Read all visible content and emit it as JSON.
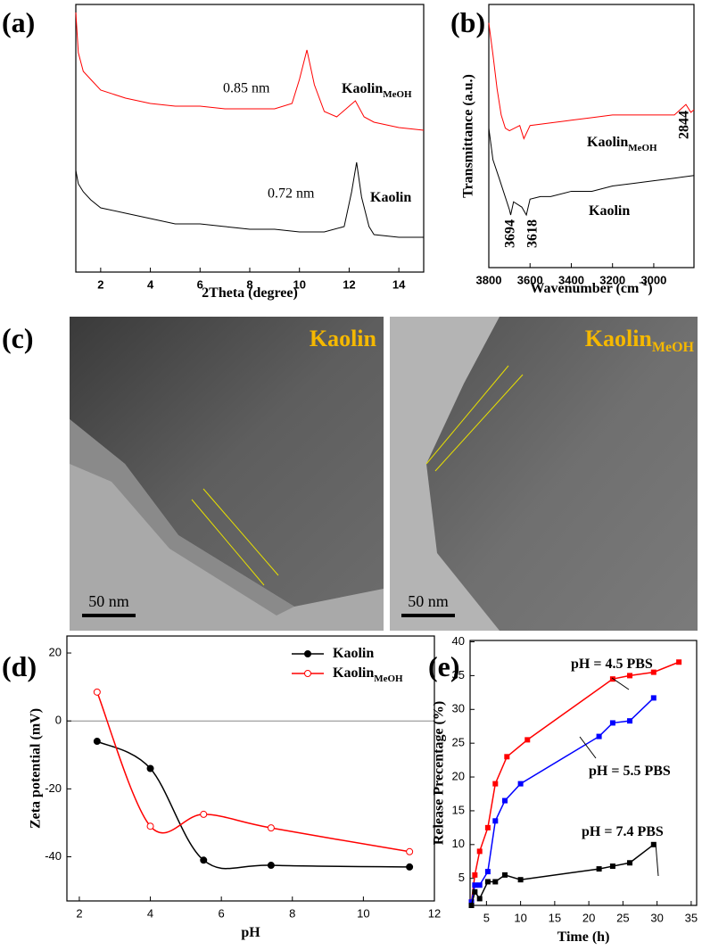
{
  "chart_data": [
    {
      "type": "line",
      "panel_label": "(a)",
      "xlabel": "2Theta (degree)",
      "xlim": [
        1,
        15
      ],
      "xticks": [
        2,
        4,
        6,
        8,
        10,
        12,
        14
      ],
      "ylim": [
        0,
        100
      ],
      "annotations": [
        "0.85 nm",
        "0.72 nm"
      ],
      "series": [
        {
          "name": "Kaolin",
          "name_sub": "MeOH",
          "color": "#ff0000",
          "x": [
            1,
            1.1,
            1.3,
            1.6,
            2,
            3,
            4,
            5,
            6,
            7,
            8,
            9,
            9.7,
            10,
            10.3,
            10.6,
            11,
            11.5,
            12,
            12.25,
            12.6,
            13,
            14,
            15
          ],
          "values": [
            97,
            82,
            75,
            72,
            68,
            65,
            63,
            62,
            62,
            61,
            61,
            61,
            63,
            72,
            83,
            70,
            60,
            58,
            62,
            64,
            58,
            56,
            54,
            53
          ]
        },
        {
          "name": "Kaolin",
          "color": "#000000",
          "x": [
            1,
            1.1,
            1.3,
            1.6,
            2,
            3,
            4,
            5,
            6,
            7,
            8,
            9,
            10,
            11,
            11.8,
            12.1,
            12.3,
            12.5,
            12.8,
            13,
            14,
            15
          ],
          "values": [
            38,
            33,
            30,
            27,
            24,
            22,
            20,
            18,
            18,
            17,
            16,
            16,
            15,
            15,
            17,
            30,
            41,
            28,
            17,
            14,
            13,
            13
          ]
        }
      ]
    },
    {
      "type": "line",
      "panel_label": "(b)",
      "ylabel": "Transmittance (a.u.)",
      "xlabel": "Wavenumber (cm",
      "xlabel_sup": "-1",
      "xlabel_end": ")",
      "xlim": [
        3800,
        2805
      ],
      "xticks": [
        3800,
        3600,
        3400,
        3200,
        3000
      ],
      "ylim": [
        0,
        100
      ],
      "annotations": [
        "2844",
        "3694",
        "3618"
      ],
      "series": [
        {
          "name": "Kaolin",
          "name_sub": "MeOH",
          "color": "#ff0000",
          "x": [
            3800,
            3780,
            3760,
            3740,
            3720,
            3700,
            3650,
            3630,
            3600,
            3500,
            3400,
            3300,
            3200,
            3100,
            3000,
            2900,
            2844,
            2820,
            2805
          ],
          "values": [
            93,
            81,
            68,
            58,
            53,
            52,
            54,
            49,
            54,
            55,
            56,
            57,
            58,
            58,
            58,
            58,
            62,
            59,
            60
          ]
        },
        {
          "name": "Kaolin",
          "color": "#000000",
          "x": [
            3800,
            3780,
            3750,
            3700,
            3694,
            3680,
            3640,
            3618,
            3600,
            3550,
            3500,
            3400,
            3300,
            3200,
            3100,
            3000,
            2900,
            2805
          ],
          "values": [
            53,
            41,
            34,
            22,
            20,
            25,
            23,
            20,
            26,
            27,
            27,
            29,
            29,
            31,
            32,
            33,
            34,
            35
          ]
        }
      ]
    },
    {
      "type": "scatter",
      "panel_label": "(d)",
      "xlabel": "pH",
      "ylabel": "Zeta potential (mV)",
      "xlim": [
        1.65,
        12
      ],
      "xticks": [
        2,
        4,
        6,
        8,
        10,
        12
      ],
      "ylim": [
        -53,
        25
      ],
      "yticks": [
        20,
        0,
        -20,
        -40
      ],
      "hline": 0,
      "legend": "upper right",
      "series": [
        {
          "name": "Kaolin",
          "color": "#000000",
          "marker": "circle",
          "x": [
            2.5,
            4,
            5.5,
            7.4,
            11.3
          ],
          "values": [
            -6,
            -14,
            -41,
            -42.5,
            -43
          ]
        },
        {
          "name": "Kaolin",
          "name_sub": "MeOH",
          "color": "#ff0000",
          "marker": "open-circle",
          "x": [
            2.5,
            4,
            5.5,
            7.4,
            11.3
          ],
          "values": [
            8.5,
            -31,
            -27.5,
            -31.5,
            -38.5
          ]
        }
      ]
    },
    {
      "type": "line",
      "panel_label": "(e)",
      "xlabel": "Time (h)",
      "ylabel": "Release Precentage (%)",
      "xlim": [
        2.6,
        35.8
      ],
      "xticks": [
        5,
        10,
        15,
        20,
        25,
        30,
        35
      ],
      "ylim": [
        1,
        40.2
      ],
      "yticks": [
        5,
        10,
        15,
        20,
        25,
        30,
        35,
        40
      ],
      "series": [
        {
          "name": "pH = 4.5 PBS",
          "color": "#ff0000",
          "marker": "square",
          "x": [
            2.8,
            3.3,
            4,
            5.2,
            6.3,
            8,
            11,
            23.5,
            26,
            29.5,
            33.2
          ],
          "values": [
            1.5,
            5.5,
            9,
            12.5,
            19,
            23,
            25.5,
            34.5,
            35,
            35.5,
            37
          ]
        },
        {
          "name": "pH = 5.5 PBS",
          "color": "#0000ff",
          "marker": "square",
          "x": [
            2.8,
            3.3,
            4,
            5.2,
            6.3,
            7.7,
            10,
            21.5,
            23.5,
            26,
            29.5
          ],
          "values": [
            1.5,
            4,
            4,
            6,
            13.5,
            16.5,
            19,
            26,
            28,
            28.3,
            31.7
          ]
        },
        {
          "name": "pH = 7.4 PBS",
          "color": "#000000",
          "marker": "square",
          "x": [
            2.8,
            3.3,
            4,
            5.2,
            6.3,
            7.7,
            10,
            21.5,
            23.5,
            26,
            29.5
          ],
          "values": [
            1,
            3,
            2,
            4.5,
            4.5,
            5.5,
            4.8,
            6.4,
            6.8,
            7.3,
            10
          ]
        }
      ]
    }
  ],
  "tem_panel": {
    "panel_label": "(c)",
    "left_label": "Kaolin",
    "right_label": "Kaolin",
    "right_label_sub": "MeOH",
    "scale_left": "50 nm",
    "scale_right": "50 nm"
  }
}
